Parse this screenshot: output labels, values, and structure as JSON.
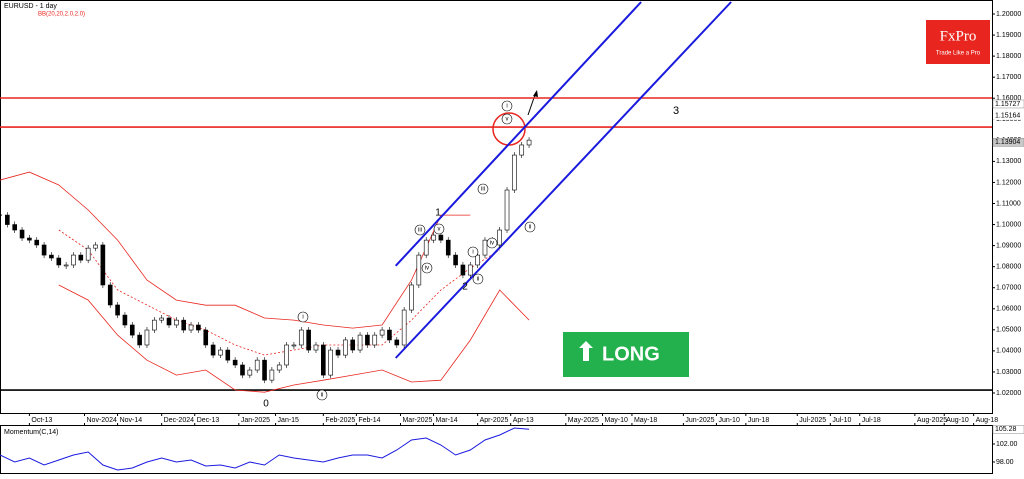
{
  "chart_data": [
    {
      "type": "candlestick",
      "title": "EURUSD - 1 day",
      "subtitle": "BB(20,20,2.0,2.0)",
      "x": [
        0,
        2,
        4,
        6,
        8,
        10,
        12,
        14,
        16,
        18,
        20,
        22,
        24,
        26,
        28,
        30,
        32,
        34,
        36,
        38,
        40,
        42,
        44,
        46,
        48,
        50,
        52,
        54,
        56,
        58,
        60,
        62,
        64,
        66,
        68,
        70,
        72,
        74,
        76,
        78,
        80,
        82,
        84,
        86,
        88,
        90,
        92,
        94,
        96,
        98,
        100,
        102,
        104,
        106,
        108,
        110,
        112,
        114,
        116,
        118,
        120,
        122,
        124,
        126,
        128,
        130,
        132,
        134,
        136,
        138,
        140,
        142,
        144
      ],
      "values": [
        1.1045,
        1.1,
        1.0974,
        1.0936,
        1.0926,
        1.0903,
        1.0855,
        1.0841,
        1.0808,
        1.0808,
        1.0855,
        1.0831,
        1.0888,
        1.0903,
        1.0713,
        1.0618,
        1.057,
        1.0523,
        1.0475,
        1.0428,
        1.0499,
        1.0546,
        1.0556,
        1.0523,
        1.0546,
        1.0499,
        1.0523,
        1.0499,
        1.0428,
        1.038,
        1.0404,
        1.0356,
        1.0333,
        1.0285,
        1.0309,
        1.0356,
        1.0261,
        1.0309,
        1.0333,
        1.0428,
        1.0428,
        1.0499,
        1.0404,
        1.0428,
        1.0285,
        1.0404,
        1.038,
        1.0452,
        1.0404,
        1.0475,
        1.0428,
        1.0475,
        1.0499,
        1.0452,
        1.0428,
        1.0594,
        1.0713,
        1.0855,
        1.0926,
        1.095,
        1.0926,
        1.0855,
        1.0808,
        1.076,
        1.0808,
        1.0855,
        1.0926,
        1.0903,
        1.0974,
        1.1164,
        1.133,
        1.1378,
        1.1401
      ],
      "xlim": [
        0,
        270
      ],
      "xticks": [
        {
          "value": 8,
          "label": "Oct-13"
        },
        {
          "value": 23,
          "label": "Nov-2024"
        },
        {
          "value": 32,
          "label": "Nov-14"
        },
        {
          "value": 44,
          "label": "Dec-2024"
        },
        {
          "value": 53,
          "label": "Dec-13"
        },
        {
          "value": 65,
          "label": "Jan-2025"
        },
        {
          "value": 75,
          "label": "Jan-15"
        },
        {
          "value": 88,
          "label": "Feb-2025"
        },
        {
          "value": 97,
          "label": "Feb-14"
        },
        {
          "value": 109,
          "label": "Mar-2025"
        },
        {
          "value": 118,
          "label": "Mar-14"
        },
        {
          "value": 130,
          "label": "Apr-2025"
        },
        {
          "value": 139,
          "label": "Apr-13"
        },
        {
          "value": 154,
          "label": "May-2025"
        },
        {
          "value": 164,
          "label": "May-10"
        },
        {
          "value": 172,
          "label": "May-18"
        },
        {
          "value": 186,
          "label": "Jun-2025"
        },
        {
          "value": 195,
          "label": "Jun-10"
        },
        {
          "value": 203,
          "label": "Jun-18"
        },
        {
          "value": 217,
          "label": "Jul-2025"
        },
        {
          "value": 226,
          "label": "Jul-10"
        },
        {
          "value": 234,
          "label": "Jul-18"
        },
        {
          "value": 249,
          "label": "Aug-2025"
        },
        {
          "value": 257,
          "label": "Aug-10"
        },
        {
          "value": 265,
          "label": "Aug-18"
        }
      ],
      "ylim": [
        1.0105,
        1.2057
      ],
      "yticks": [
        {
          "value": 1.02,
          "label": "1.02000"
        },
        {
          "value": 1.03,
          "label": "1.03000"
        },
        {
          "value": 1.04,
          "label": "1.04000"
        },
        {
          "value": 1.05,
          "label": "1.05000"
        },
        {
          "value": 1.06,
          "label": "1.06000"
        },
        {
          "value": 1.07,
          "label": "1.07000"
        },
        {
          "value": 1.08,
          "label": "1.08000"
        },
        {
          "value": 1.09,
          "label": "1.09000"
        },
        {
          "value": 1.1,
          "label": "1.10000"
        },
        {
          "value": 1.11,
          "label": "1.11000"
        },
        {
          "value": 1.12,
          "label": "1.12000"
        },
        {
          "value": 1.13,
          "label": "1.13000"
        },
        {
          "value": 1.14,
          "label": "1.14000"
        },
        {
          "value": 1.15,
          "label": "1.15000"
        },
        {
          "value": 1.16,
          "label": "1.16000"
        },
        {
          "value": 1.17,
          "label": "1.17000"
        },
        {
          "value": 1.18,
          "label": "1.18000"
        },
        {
          "value": 1.19,
          "label": "1.19000"
        },
        {
          "value": 1.2,
          "label": "1.20000"
        }
      ],
      "price_labels": [
        1.15727,
        1.15164,
        1.13904
      ],
      "bands_color": "#e8261f",
      "bands": [
        {
          "style": "solid",
          "x": [
            0,
            8,
            16,
            24,
            32,
            40,
            48,
            56,
            64,
            72,
            80,
            88,
            96,
            104,
            112,
            120,
            128
          ],
          "values": [
            1.1211,
            1.1249,
            1.1188,
            1.1069,
            1.0926,
            1.0736,
            1.0641,
            1.0617,
            1.0617,
            1.0556,
            1.0546,
            1.0523,
            1.0508,
            1.0523,
            1.0736,
            1.1045,
            1.1045
          ]
        },
        {
          "style": "solid",
          "x": [
            16,
            24,
            32,
            40,
            48,
            56,
            64,
            72,
            80,
            88,
            96,
            104,
            112,
            120,
            128,
            136,
            144
          ],
          "values": [
            1.0713,
            1.0641,
            1.0475,
            1.0356,
            1.0285,
            1.0309,
            1.0214,
            1.0204,
            1.0238,
            1.0261,
            1.0285,
            1.0309,
            1.0252,
            1.0261,
            1.0451,
            1.0689,
            1.0546
          ]
        },
        {
          "style": "dotted",
          "x": [
            16,
            24,
            32,
            40,
            48,
            56,
            64,
            72,
            80,
            88,
            96,
            104,
            112,
            120,
            128,
            136
          ],
          "values": [
            1.0974,
            1.0879,
            1.0689,
            1.0618,
            1.0546,
            1.0499,
            1.0428,
            1.038,
            1.0404,
            1.0428,
            1.0428,
            1.0428,
            1.0546,
            1.0689,
            1.0793,
            1.0879
          ]
        }
      ],
      "levels": [
        {
          "value": 1.1601,
          "color": "#e8261f"
        },
        {
          "value": 1.1463,
          "color": "#e8261f"
        },
        {
          "value": 1.0214,
          "color": "#000000"
        }
      ],
      "channel_color": "#1a1adf",
      "channels": [
        {
          "x": [
            107.7,
            174.5
          ],
          "values": [
            1.0804,
            1.2057
          ]
        },
        {
          "x": [
            107.7,
            199
          ],
          "values": [
            1.0366,
            1.2057
          ]
        }
      ],
      "wave_labels": [
        "i",
        "ii",
        "0",
        "iii",
        "iv",
        "v",
        "1",
        "2",
        "i",
        "ii",
        "iii",
        "iv",
        "v",
        "i",
        "ii",
        "3"
      ]
    },
    {
      "type": "line",
      "title": "Momentum(C,14)",
      "color": "#1a1adf",
      "x": [
        0,
        4,
        8,
        12,
        16,
        20,
        24,
        28,
        32,
        36,
        40,
        44,
        48,
        52,
        56,
        60,
        64,
        68,
        72,
        76,
        80,
        84,
        88,
        92,
        96,
        100,
        104,
        108,
        112,
        116,
        120,
        124,
        128,
        132,
        136,
        140,
        144
      ],
      "values": [
        99.56,
        98.0,
        98.89,
        97.33,
        98.44,
        99.56,
        100.22,
        97.33,
        96.22,
        96.67,
        98.0,
        98.89,
        98.0,
        98.44,
        97.11,
        97.33,
        96.67,
        98.0,
        97.33,
        99.56,
        98.89,
        98.44,
        98.0,
        98.89,
        99.56,
        99.56,
        98.89,
        100.67,
        102.89,
        103.33,
        101.78,
        99.56,
        100.67,
        102.89,
        104.0,
        105.56,
        105.28
      ],
      "xlim": [
        0,
        270
      ],
      "ylim": [
        96,
        105.78
      ],
      "yticks": [
        {
          "value": 98,
          "label": "98.00"
        },
        {
          "value": 102,
          "label": "102.00"
        }
      ]
    }
  ],
  "logo": {
    "name": "FxPro",
    "tagline": "Trade Like a Pro"
  },
  "signal": "LONG"
}
